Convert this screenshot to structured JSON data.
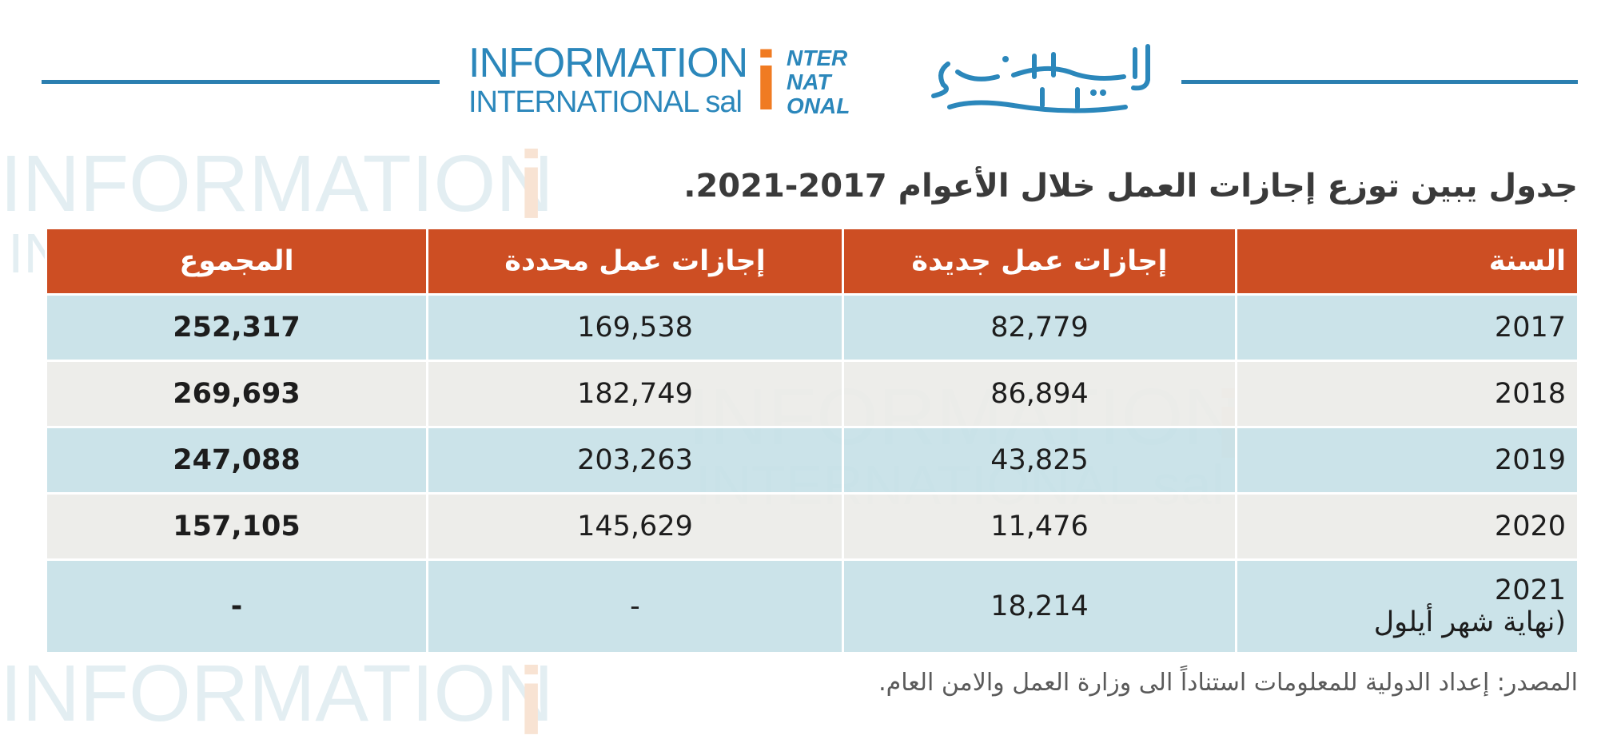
{
  "logo": {
    "line1": "INFORMATION",
    "line2": "INTERNATIONAL sal",
    "mark_letter": "i",
    "mark_lines": [
      "NTER",
      "NAT",
      "ONAL"
    ],
    "arabic_name": "الدولية للمعلومات"
  },
  "title": "جدول يبين توزع إجازات العمل خلال الأعوام 2017-2021.",
  "table": {
    "headers": {
      "year": "السنة",
      "new_permits": "إجازات عمل جديدة",
      "renewed_permits": "إجازات عمل محددة",
      "total": "المجموع"
    },
    "rows": [
      {
        "year": "2017",
        "note": "",
        "new_permits": "82,779",
        "renewed_permits": "169,538",
        "total": "252,317"
      },
      {
        "year": "2018",
        "note": "",
        "new_permits": "86,894",
        "renewed_permits": "182,749",
        "total": "269,693"
      },
      {
        "year": "2019",
        "note": "",
        "new_permits": "43,825",
        "renewed_permits": "203,263",
        "total": "247,088"
      },
      {
        "year": "2020",
        "note": "",
        "new_permits": "11,476",
        "renewed_permits": "145,629",
        "total": "157,105"
      },
      {
        "year": "2021",
        "note": "(نهاية شهر أيلول",
        "new_permits": "18,214",
        "renewed_permits": "-",
        "total": "-"
      }
    ]
  },
  "source": "المصدر: إعداد الدولية للمعلومات استناداً الى وزارة العمل والامن العام.",
  "colors": {
    "header_bg": "#cd4e23",
    "row_blue": "#c7e1e7",
    "row_grey": "#ecebe8",
    "brand_blue": "#2b87bb",
    "brand_orange": "#f07b22"
  }
}
